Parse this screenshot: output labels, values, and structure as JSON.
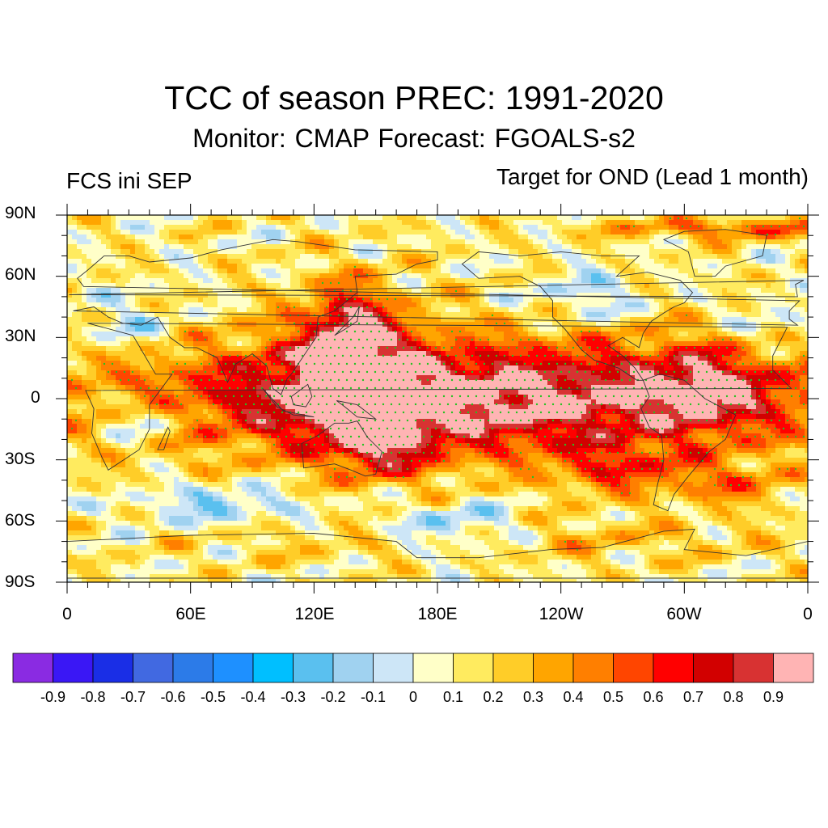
{
  "header": {
    "title": "TCC of season PREC: 1991-2020",
    "subtitle": "Monitor: CMAP   Forecast: FGOALS-s2",
    "left_label": "FCS ini SEP",
    "right_label": "Target for OND (Lead 1 month)"
  },
  "axes": {
    "lat_labels": [
      "90N",
      "60N",
      "30N",
      "0",
      "30S",
      "60S",
      "90S"
    ],
    "lon_labels": [
      "0",
      "60E",
      "120E",
      "180E",
      "120W",
      "60W",
      "0"
    ]
  },
  "colorbar": {
    "labels": [
      "-0.9",
      "-0.8",
      "-0.7",
      "-0.6",
      "-0.5",
      "-0.4",
      "-0.3",
      "-0.2",
      "-0.1",
      "0",
      "0.1",
      "0.2",
      "0.3",
      "0.4",
      "0.5",
      "0.6",
      "0.7",
      "0.8",
      "0.9"
    ],
    "colors": [
      "#8a2be2",
      "#3a17f5",
      "#1a2ee6",
      "#4169e1",
      "#2c7be8",
      "#1e90ff",
      "#00bfff",
      "#5ac0ef",
      "#a0d2f0",
      "#cde6f7",
      "#ffffc8",
      "#ffeb5f",
      "#ffcd28",
      "#ffa500",
      "#ff7f00",
      "#ff4500",
      "#ff0000",
      "#d20000",
      "#d83232",
      "#ffb4b4"
    ]
  },
  "map": {
    "projection": "cylindrical-equidistant",
    "lon_range": [
      0,
      360
    ],
    "lat_range": [
      -90,
      90
    ],
    "field": "temporal correlation coefficient (TCC)",
    "stippling_color": "#22c322"
  }
}
